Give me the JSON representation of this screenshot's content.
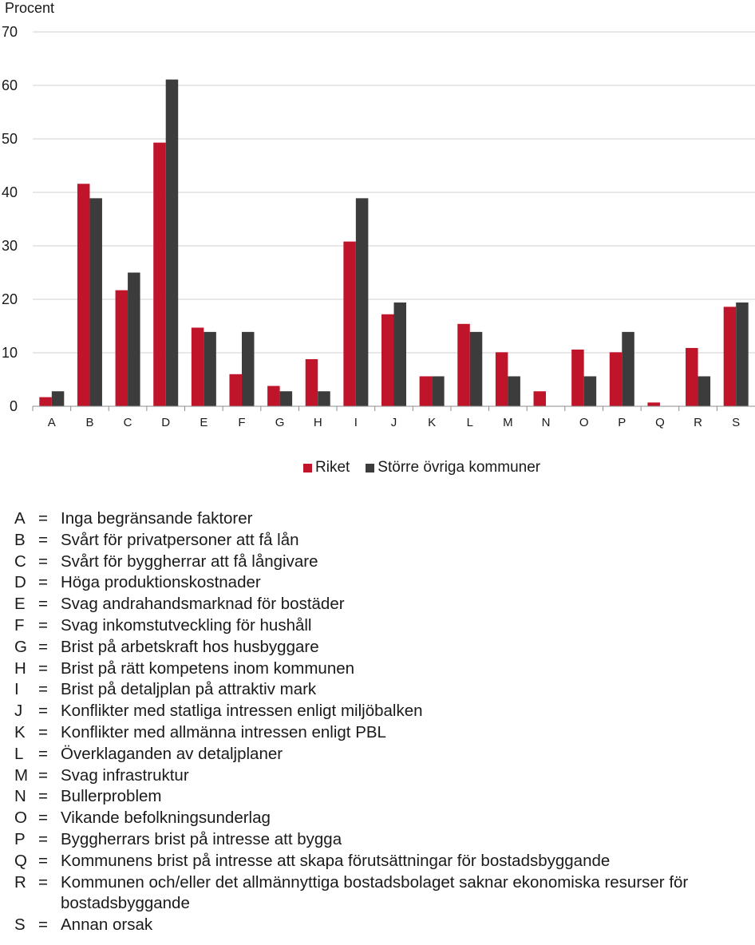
{
  "chart_data": {
    "type": "bar",
    "ylabel": "Procent",
    "ylim": [
      0,
      70
    ],
    "yticks": [
      "0",
      "10",
      "20",
      "30",
      "40",
      "50",
      "60",
      "70"
    ],
    "grid": true,
    "legend_position": "bottom",
    "categories": [
      "A",
      "B",
      "C",
      "D",
      "E",
      "F",
      "G",
      "H",
      "I",
      "J",
      "K",
      "L",
      "M",
      "N",
      "O",
      "P",
      "Q",
      "R",
      "S"
    ],
    "series": [
      {
        "name": "Riket",
        "color": "#c0142b",
        "values": [
          1.7,
          41.6,
          21.7,
          49.3,
          14.7,
          6.0,
          3.8,
          8.8,
          30.8,
          17.2,
          5.6,
          15.4,
          10.1,
          2.8,
          10.6,
          10.1,
          0.7,
          10.9,
          18.6
        ]
      },
      {
        "name": "Större övriga kommuner",
        "color": "#3c3c3c",
        "values": [
          2.8,
          38.9,
          25.0,
          61.1,
          13.9,
          13.9,
          2.8,
          2.8,
          38.9,
          19.4,
          5.6,
          13.9,
          5.6,
          0,
          5.6,
          13.9,
          0,
          5.6,
          19.4
        ]
      }
    ]
  },
  "legend": {
    "items": [
      "Riket",
      "Större övriga kommuner"
    ]
  },
  "key": [
    {
      "code": "A",
      "eq": "=",
      "text": "Inga begränsande faktorer"
    },
    {
      "code": "B",
      "eq": "=",
      "text": "Svårt för privatpersoner att få lån"
    },
    {
      "code": "C",
      "eq": "=",
      "text": "Svårt för byggherrar att få långivare"
    },
    {
      "code": "D",
      "eq": "=",
      "text": "Höga produktionskostnader"
    },
    {
      "code": "E",
      "eq": "=",
      "text": "Svag andrahandsmarknad för bostäder"
    },
    {
      "code": "F",
      "eq": "=",
      "text": "Svag inkomstutveckling för hushåll"
    },
    {
      "code": "G",
      "eq": "=",
      "text": "Brist på arbetskraft hos husbyggare"
    },
    {
      "code": "H",
      "eq": "=",
      "text": "Brist på rätt kompetens inom kommunen"
    },
    {
      "code": "I",
      "eq": "=",
      "text": "Brist på detaljplan på attraktiv mark"
    },
    {
      "code": "J",
      "eq": "=",
      "text": "Konflikter med statliga intressen enligt miljöbalken"
    },
    {
      "code": "K",
      "eq": "=",
      "text": "Konflikter med allmänna intressen enligt PBL"
    },
    {
      "code": "L",
      "eq": "=",
      "text": "Överklaganden av detaljplaner"
    },
    {
      "code": "M",
      "eq": "=",
      "text": "Svag infrastruktur"
    },
    {
      "code": "N",
      "eq": "=",
      "text": "Bullerproblem"
    },
    {
      "code": "O",
      "eq": "=",
      "text": "Vikande befolkningsunderlag"
    },
    {
      "code": "P",
      "eq": "=",
      "text": "Byggherrars brist på intresse att bygga"
    },
    {
      "code": "Q",
      "eq": "=",
      "text": "Kommunens brist på intresse att skapa förutsättningar för bostadsbyggande"
    },
    {
      "code": "R",
      "eq": "=",
      "text": "Kommunen och/eller det allmännyttiga bostadsbolaget saknar ekonomiska resurser för bostadsbyggande"
    },
    {
      "code": "S",
      "eq": "=",
      "text": "Annan orsak"
    }
  ]
}
